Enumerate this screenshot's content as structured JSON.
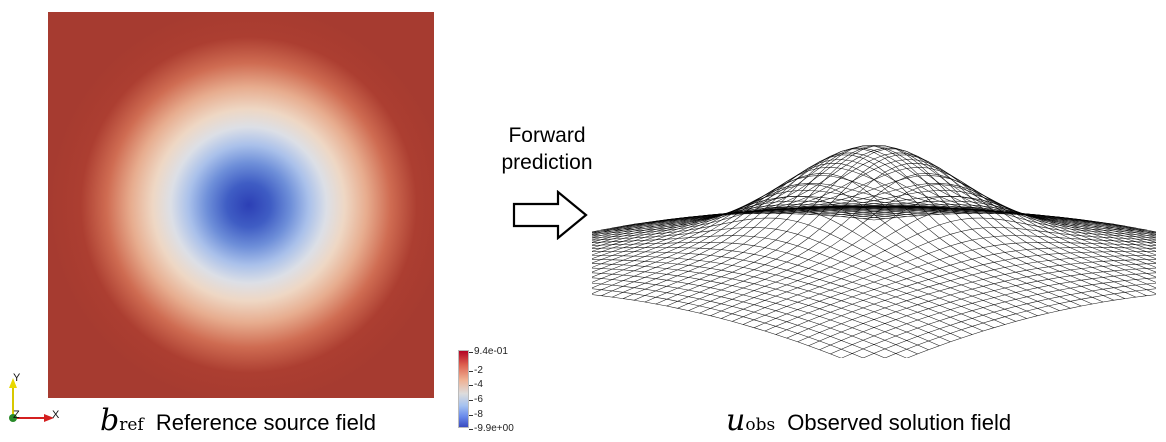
{
  "left_panel": {
    "colorbar": {
      "max_label": "9.4e-01",
      "ticks": [
        "-2",
        "-4",
        "-6",
        "-8"
      ],
      "min_label": "-9.9e+00"
    },
    "axes": {
      "y": "Y",
      "z": "Z",
      "x": "X"
    },
    "caption": {
      "symbol": "b",
      "subscript": "ref",
      "text": "Reference source field"
    }
  },
  "arrow": {
    "line1": "Forward",
    "line2": "prediction"
  },
  "right_panel": {
    "caption": {
      "symbol": "u",
      "subscript": "obs",
      "text": "Observed solution field"
    }
  }
}
